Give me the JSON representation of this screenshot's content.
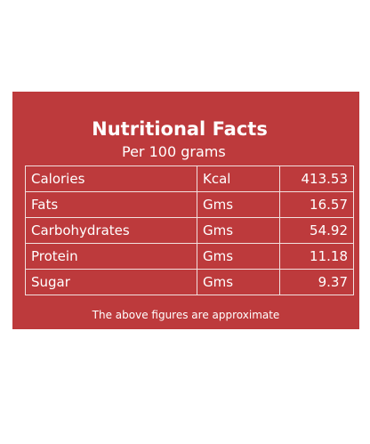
{
  "header": {
    "title": "Nutritional Facts",
    "subtitle": "Per 100 grams"
  },
  "table": {
    "rows": [
      [
        "Calories",
        "Kcal",
        "413.53"
      ],
      [
        "Fats",
        "Gms",
        "16.57"
      ],
      [
        "Carbohydrates",
        "Gms",
        "54.92"
      ],
      [
        "Protein",
        "Gms",
        "11.18"
      ],
      [
        "Sugar",
        "Gms",
        "9.37"
      ]
    ]
  },
  "footer": "The above figures are approximate"
}
